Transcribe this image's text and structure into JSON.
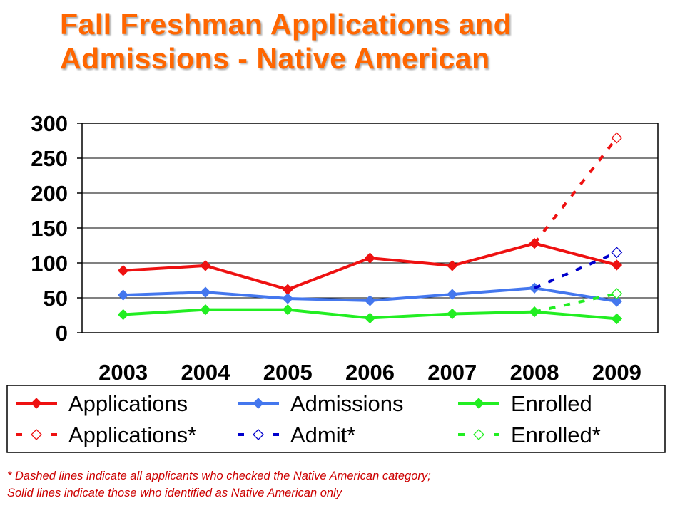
{
  "title_lines": [
    "Fall Freshman Applications and",
    "Admissions - Native American"
  ],
  "footnote_lines": [
    "*  Dashed lines indicate all applicants who checked the Native American category;",
    "Solid lines indicate those who identified as Native American only"
  ],
  "chart_data": {
    "type": "line",
    "categories": [
      "2003",
      "2004",
      "2005",
      "2006",
      "2007",
      "2008",
      "2009"
    ],
    "ylim": [
      0,
      300
    ],
    "yticks": [
      0,
      50,
      100,
      150,
      200,
      250,
      300
    ],
    "grid": true,
    "legend_placement": "bottom",
    "series": [
      {
        "name": "Applications",
        "values": [
          89,
          96,
          62,
          107,
          96,
          128,
          97
        ],
        "color": "#ee1111",
        "style": "solid",
        "marker": "filled-diamond"
      },
      {
        "name": "Admissions",
        "values": [
          54,
          58,
          49,
          46,
          55,
          64,
          45
        ],
        "color": "#4477ee",
        "style": "solid",
        "marker": "filled-diamond"
      },
      {
        "name": "Enrolled",
        "values": [
          26,
          33,
          33,
          21,
          27,
          30,
          20
        ],
        "color": "#22ee22",
        "style": "solid",
        "marker": "filled-diamond"
      },
      {
        "name": "Applications*",
        "values": [
          null,
          null,
          null,
          null,
          null,
          128,
          279
        ],
        "color": "#ee1111",
        "style": "dashed",
        "marker": "open-diamond"
      },
      {
        "name": "Admit*",
        "values": [
          null,
          null,
          null,
          null,
          null,
          64,
          115
        ],
        "color": "#0000cc",
        "style": "dashed",
        "marker": "open-diamond"
      },
      {
        "name": "Enrolled*",
        "values": [
          null,
          null,
          null,
          null,
          null,
          30,
          56
        ],
        "color": "#22ee22",
        "style": "dashed",
        "marker": "open-diamond"
      }
    ]
  }
}
